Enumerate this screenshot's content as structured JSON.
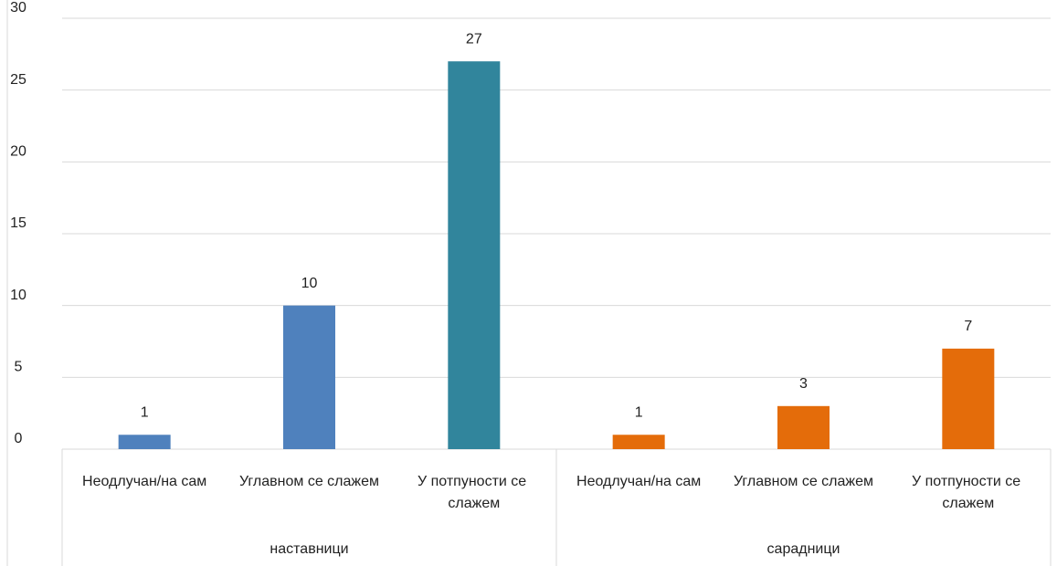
{
  "chart_data": {
    "type": "bar",
    "groups": [
      {
        "name": "наставници",
        "categories": [
          "Неодлучан/на сам",
          "Углавном се слажем",
          "У потпуности се слажем"
        ],
        "values": [
          1,
          10,
          27
        ],
        "colors": [
          "#4f81bd",
          "#4f81bd",
          "#31859c"
        ]
      },
      {
        "name": "сарадници",
        "categories": [
          "Неодлучан/на сам",
          "Углавном се слажем",
          "У потпуности се слажем"
        ],
        "values": [
          1,
          3,
          7
        ],
        "colors": [
          "#e46c0a",
          "#e46c0a",
          "#e46c0a"
        ]
      }
    ],
    "ylim": [
      0,
      30
    ],
    "yticks": [
      0,
      5,
      10,
      15,
      20,
      25,
      30
    ],
    "grid": true,
    "data_labels": true
  }
}
